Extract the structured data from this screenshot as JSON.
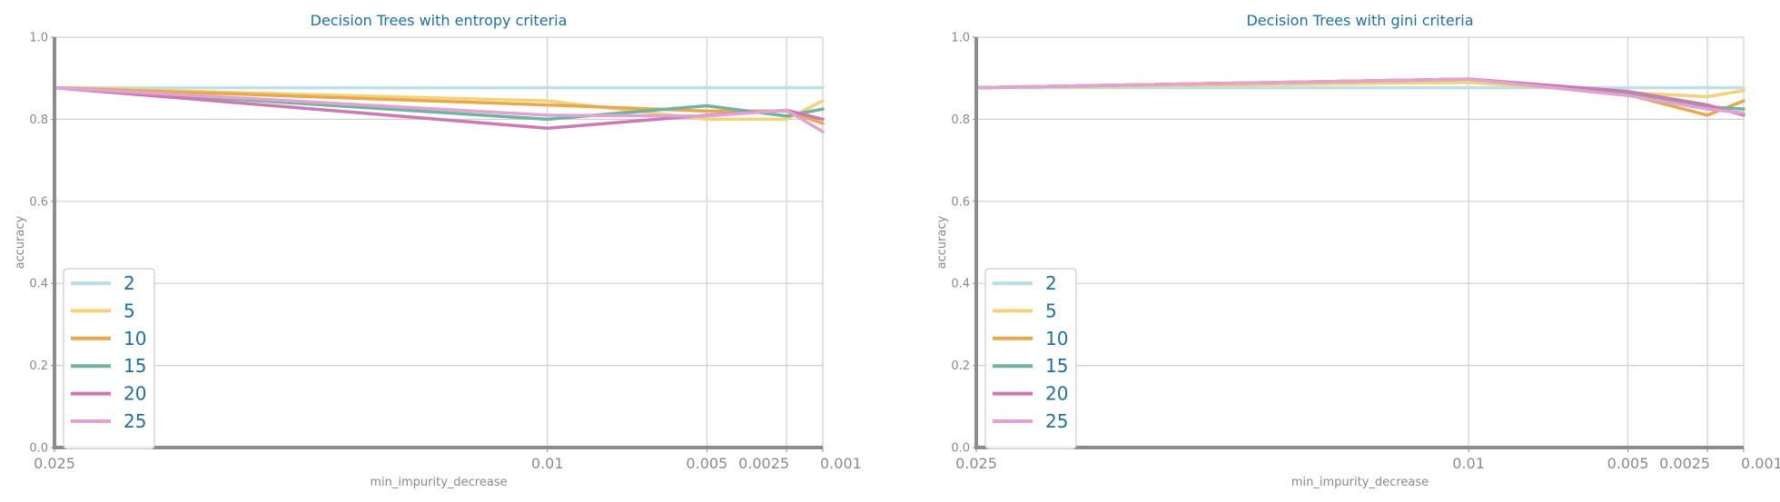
{
  "chart_data": [
    {
      "type": "line",
      "title": "Decision Trees with entropy criteria",
      "xlabel": "min_impurity_decrease",
      "ylabel": "accuracy",
      "categories": [
        "0.025",
        "0.01",
        "0.005",
        "0.0025",
        "0.001"
      ],
      "x": [
        0.025,
        0.01,
        0.005,
        0.0025,
        0.001
      ],
      "ylim": [
        0,
        1
      ],
      "yticks": [
        "0.0",
        "0.2",
        "0.4",
        "0.6",
        "0.8",
        "1.0"
      ],
      "grid": true,
      "legend_position": "lower-left",
      "series": [
        {
          "name": "2",
          "color": "#bfdfe6",
          "values": [
            0.877,
            0.877,
            0.877,
            0.877,
            0.877
          ]
        },
        {
          "name": "5",
          "color": "#f2d27a",
          "values": [
            0.877,
            0.845,
            0.8,
            0.8,
            0.845
          ]
        },
        {
          "name": "10",
          "color": "#e8a94e",
          "values": [
            0.877,
            0.835,
            0.82,
            0.82,
            0.79
          ]
        },
        {
          "name": "15",
          "color": "#6fb3a0",
          "values": [
            0.877,
            0.8,
            0.833,
            0.808,
            0.825
          ]
        },
        {
          "name": "20",
          "color": "#cc7ab1",
          "values": [
            0.877,
            0.778,
            0.81,
            0.822,
            0.8
          ]
        },
        {
          "name": "25",
          "color": "#e0a3d2",
          "values": [
            0.877,
            0.81,
            0.808,
            0.822,
            0.77
          ]
        }
      ]
    },
    {
      "type": "line",
      "title": "Decision Trees with gini criteria",
      "xlabel": "min_impurity_decrease",
      "ylabel": "accuracy",
      "categories": [
        "0.025",
        "0.01",
        "0.005",
        "0.0025",
        "0.001"
      ],
      "x": [
        0.025,
        0.01,
        0.005,
        0.0025,
        0.001
      ],
      "ylim": [
        0,
        1
      ],
      "yticks": [
        "0.0",
        "0.2",
        "0.4",
        "0.6",
        "0.8",
        "1.0"
      ],
      "grid": true,
      "legend_position": "lower-left",
      "series": [
        {
          "name": "2",
          "color": "#bfdfe6",
          "values": [
            0.877,
            0.877,
            0.877,
            0.877,
            0.877
          ]
        },
        {
          "name": "5",
          "color": "#f2d27a",
          "values": [
            0.877,
            0.89,
            0.865,
            0.855,
            0.87
          ]
        },
        {
          "name": "10",
          "color": "#e8a94e",
          "values": [
            0.877,
            0.898,
            0.86,
            0.81,
            0.845
          ]
        },
        {
          "name": "15",
          "color": "#6fb3a0",
          "values": [
            0.877,
            0.898,
            0.865,
            0.83,
            0.825
          ]
        },
        {
          "name": "20",
          "color": "#cc7ab1",
          "values": [
            0.877,
            0.898,
            0.868,
            0.835,
            0.81
          ]
        },
        {
          "name": "25",
          "color": "#e0a3d2",
          "values": [
            0.877,
            0.898,
            0.858,
            0.825,
            0.815
          ]
        }
      ]
    }
  ],
  "colors": {
    "title": "#1f6fa6",
    "tick": "#8a8a8a",
    "grid": "#cfcfcf",
    "spine": "#8c8c8c",
    "legend_border": "#cccccc"
  }
}
